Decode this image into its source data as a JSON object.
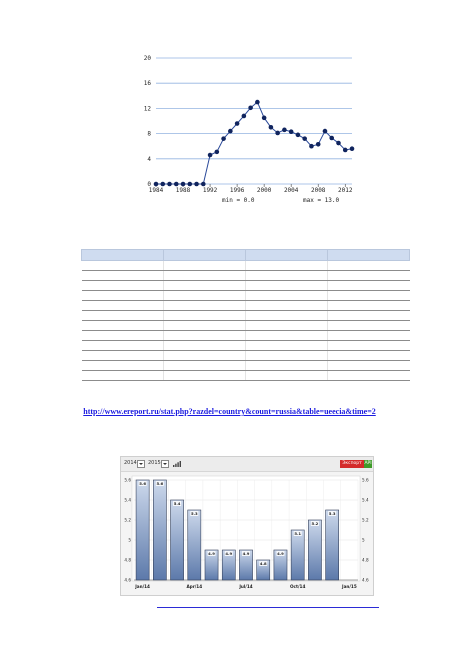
{
  "chart_data": [
    {
      "type": "line",
      "x": [
        1984,
        1985,
        1986,
        1987,
        1988,
        1989,
        1990,
        1991,
        1992,
        1993,
        1994,
        1995,
        1996,
        1997,
        1998,
        1999,
        2000,
        2001,
        2002,
        2003,
        2004,
        2005,
        2006,
        2007,
        2008,
        2009,
        2010,
        2011,
        2012,
        2013
      ],
      "values": [
        0,
        0,
        0,
        0,
        0,
        0,
        0,
        0,
        4.6,
        5.1,
        7.2,
        8.4,
        9.6,
        10.8,
        12.1,
        13.0,
        10.5,
        9.0,
        8.1,
        8.6,
        8.3,
        7.8,
        7.2,
        6.0,
        6.3,
        8.4,
        7.3,
        6.5,
        5.4,
        5.6
      ],
      "yticks": [
        "0",
        "4",
        "8",
        "12",
        "16",
        "20"
      ],
      "xticks": [
        "1984",
        "1988",
        "1992",
        "1996",
        "2000",
        "2004",
        "2008",
        "2012"
      ],
      "ylim": [
        0,
        20
      ],
      "min_label": "min = 0.0",
      "max_label": "max = 13.0",
      "line_color": "#2b4a9a",
      "marker_color": "#10245e",
      "grid": true
    },
    {
      "type": "bar",
      "categories": [
        "Jan/14",
        "Feb/14",
        "Mar/14",
        "Apr/14",
        "May/14",
        "Jun/14",
        "Jul/14",
        "Aug/14",
        "Sep/14",
        "Oct/14",
        "Nov/14",
        "Dec/14",
        "Jan/15"
      ],
      "values": [
        5.6,
        5.6,
        5.4,
        5.3,
        4.9,
        4.9,
        4.9,
        4.8,
        4.9,
        5.1,
        5.2,
        5.3,
        null
      ],
      "data_labels": [
        "5.6",
        "5.6",
        "5.4",
        "5.3",
        "4.9",
        "4.9",
        "4.9",
        "4.8",
        "4.9",
        "5.1",
        "5.2",
        "5.3",
        ""
      ],
      "xticks": [
        {
          "label": "Jan/14",
          "index": 0
        },
        {
          "label": "Apr/14",
          "index": 3
        },
        {
          "label": "Jul/14",
          "index": 6
        },
        {
          "label": "Oct/14",
          "index": 9
        },
        {
          "label": "Jan/15",
          "index": 12
        }
      ],
      "yticks": [
        "4.6",
        "4.8",
        "5",
        "5.2",
        "5.4",
        "5.6"
      ],
      "ylim": [
        4.6,
        5.6
      ],
      "bar_color_top": "#cdd9ec",
      "bar_color_bottom": "#5c79aa",
      "grid": true
    }
  ],
  "table": {
    "columns": [
      "",
      "",
      "",
      ""
    ],
    "rows": [
      [
        "",
        "",
        "",
        ""
      ],
      [
        "",
        "",
        "",
        ""
      ],
      [
        "",
        "",
        "",
        ""
      ],
      [
        "",
        "",
        "",
        ""
      ],
      [
        "",
        "",
        "",
        ""
      ],
      [
        "",
        "",
        "",
        ""
      ],
      [
        "",
        "",
        "",
        ""
      ],
      [
        "",
        "",
        "",
        ""
      ],
      [
        "",
        "",
        "",
        ""
      ],
      [
        "",
        "",
        "",
        ""
      ],
      [
        "",
        "",
        "",
        ""
      ],
      [
        "",
        "",
        "",
        ""
      ]
    ]
  },
  "source_link": "http://www.ereport.ru/stat.php?razdel=country&count=russia&table=ueecia&time=2",
  "widget": {
    "year_from": "2014",
    "year_to": "2015",
    "export_label": "Экспорт",
    "api_label": "API",
    "signal_icon": "signal-bars-icon"
  },
  "colors": {
    "link": "#1b1be0",
    "table_header": "#cfdcf0",
    "export": "#d42a2a",
    "api": "#3f9b2a"
  }
}
